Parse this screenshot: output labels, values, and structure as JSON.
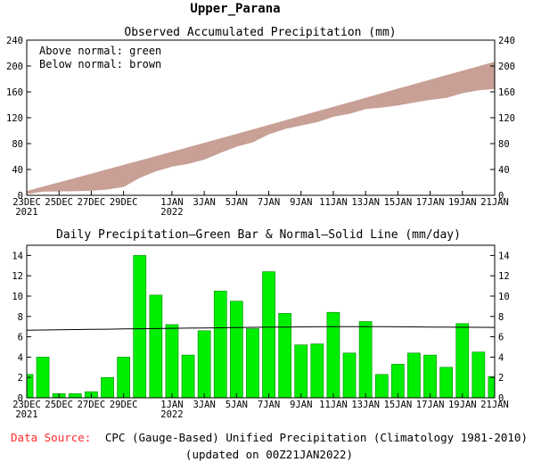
{
  "page_title": "Upper_Parana",
  "data_source": {
    "label": "Data Source:",
    "text": "CPC (Gauge-Based) Unified Precipitation (Climatology 1981-2010)",
    "updated": "(updated on 00Z21JAN2022)",
    "label_color": "#ff2a2a"
  },
  "colors": {
    "deficit_fill": "#c8a096",
    "bar_fill": "#00ee00",
    "bar_stroke": "#008800",
    "axis": "#000000"
  },
  "chart_data": [
    {
      "type": "area",
      "title": "Observed Accumulated Precipitation (mm)",
      "legend": [
        "Above normal: green",
        "Below normal: brown"
      ],
      "legend_position": "top-left",
      "x": [
        "23DEC",
        "24DEC",
        "25DEC",
        "26DEC",
        "27DEC",
        "28DEC",
        "29DEC",
        "30DEC",
        "31DEC",
        "1JAN",
        "2JAN",
        "3JAN",
        "4JAN",
        "5JAN",
        "6JAN",
        "7JAN",
        "8JAN",
        "9JAN",
        "10JAN",
        "11JAN",
        "12JAN",
        "13JAN",
        "14JAN",
        "15JAN",
        "16JAN",
        "17JAN",
        "18JAN",
        "19JAN",
        "20JAN",
        "21JAN"
      ],
      "tick_labels": [
        {
          "label": "23DEC",
          "sub": "2021",
          "index": 0
        },
        {
          "label": "25DEC",
          "sub": "",
          "index": 2
        },
        {
          "label": "27DEC",
          "sub": "",
          "index": 4
        },
        {
          "label": "29DEC",
          "sub": "",
          "index": 6
        },
        {
          "label": "1JAN",
          "sub": "2022",
          "index": 9
        },
        {
          "label": "3JAN",
          "sub": "",
          "index": 11
        },
        {
          "label": "5JAN",
          "sub": "",
          "index": 13
        },
        {
          "label": "7JAN",
          "sub": "",
          "index": 15
        },
        {
          "label": "9JAN",
          "sub": "",
          "index": 17
        },
        {
          "label": "11JAN",
          "sub": "",
          "index": 19
        },
        {
          "label": "13JAN",
          "sub": "",
          "index": 21
        },
        {
          "label": "15JAN",
          "sub": "",
          "index": 23
        },
        {
          "label": "17JAN",
          "sub": "",
          "index": 25
        },
        {
          "label": "19JAN",
          "sub": "",
          "index": 27
        },
        {
          "label": "21JAN",
          "sub": "",
          "index": 29
        }
      ],
      "series": [
        {
          "name": "Observed",
          "values": [
            2.3,
            6.3,
            6.7,
            7.1,
            7.7,
            9.7,
            13.7,
            27.7,
            37.8,
            45.0,
            49.2,
            55.8,
            66.3,
            75.8,
            82.6,
            95.0,
            103.3,
            108.5,
            113.8,
            122.2,
            126.6,
            134.1,
            136.4,
            139.7,
            144.1,
            148.3,
            151.3,
            158.6,
            163.1,
            165.2
          ]
        },
        {
          "name": "Normal",
          "values": [
            6.7,
            13.4,
            20.1,
            26.8,
            33.5,
            40.3,
            47.0,
            53.8,
            60.6,
            67.4,
            74.3,
            81.2,
            88.1,
            95.0,
            101.9,
            108.9,
            115.9,
            122.9,
            129.9,
            136.9,
            143.9,
            150.9,
            157.9,
            164.9,
            171.9,
            178.9,
            185.8,
            192.7,
            199.6,
            206.5
          ]
        }
      ],
      "ylim": [
        0,
        240
      ],
      "yticks": [
        0,
        40,
        80,
        120,
        160,
        200,
        240
      ],
      "grid": false
    },
    {
      "type": "bar",
      "title": "Daily Precipitation—Green Bar & Normal—Solid Line (mm/day)",
      "x": [
        "23DEC",
        "24DEC",
        "25DEC",
        "26DEC",
        "27DEC",
        "28DEC",
        "29DEC",
        "30DEC",
        "31DEC",
        "1JAN",
        "2JAN",
        "3JAN",
        "4JAN",
        "5JAN",
        "6JAN",
        "7JAN",
        "8JAN",
        "9JAN",
        "10JAN",
        "11JAN",
        "12JAN",
        "13JAN",
        "14JAN",
        "15JAN",
        "16JAN",
        "17JAN",
        "18JAN",
        "19JAN",
        "20JAN",
        "21JAN"
      ],
      "series": [
        {
          "name": "Daily Precipitation",
          "values": [
            2.3,
            4.0,
            0.4,
            0.4,
            0.6,
            2.0,
            4.0,
            14.0,
            10.1,
            7.2,
            4.2,
            6.6,
            10.5,
            9.5,
            6.8,
            12.4,
            8.3,
            5.2,
            5.3,
            8.4,
            4.4,
            7.5,
            2.3,
            3.3,
            4.4,
            4.2,
            3.0,
            7.3,
            4.5,
            2.1
          ]
        },
        {
          "name": "Normal",
          "values": [
            6.65,
            6.67,
            6.69,
            6.71,
            6.73,
            6.75,
            6.77,
            6.79,
            6.81,
            6.83,
            6.85,
            6.87,
            6.89,
            6.91,
            6.93,
            6.95,
            6.96,
            6.97,
            6.98,
            6.99,
            7.0,
            7.0,
            6.99,
            6.98,
            6.97,
            6.96,
            6.95,
            6.94,
            6.93,
            6.92
          ]
        }
      ],
      "ylim": [
        0,
        15
      ],
      "yticks": [
        0,
        2,
        4,
        6,
        8,
        10,
        12,
        14
      ],
      "grid": false
    }
  ]
}
